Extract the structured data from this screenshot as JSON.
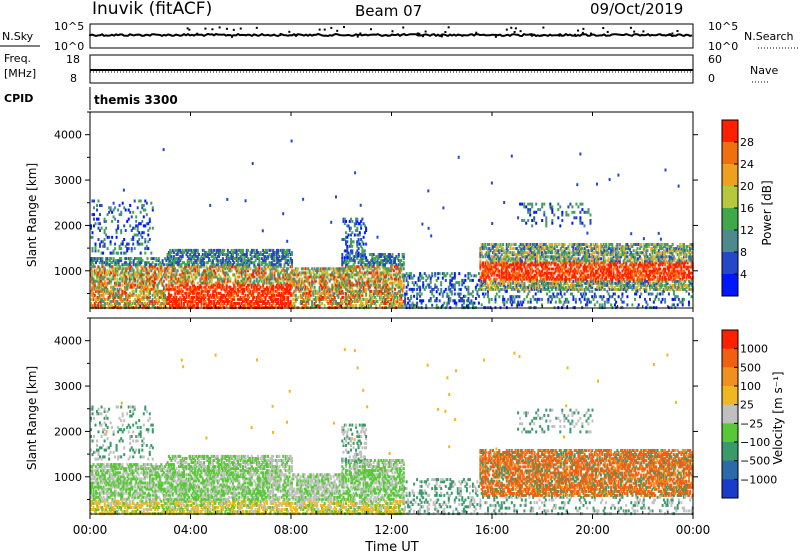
{
  "header": {
    "station": "Inuvik (fitACF)",
    "beam": "Beam 07",
    "date": "09/Oct/2019"
  },
  "aux_panels": {
    "nsky_label": "N.Sky",
    "nsearch_label": "N.Search",
    "nsky_ticks": [
      "10^5",
      "10^0"
    ],
    "nsearch_ticks": [
      "10^5",
      "10^0"
    ],
    "freq_label_line1": "Freq.",
    "freq_label_line2": "[MHz]",
    "freq_ticks": [
      "18",
      "8"
    ],
    "nave_label": "Nave",
    "nave_ticks": [
      "60",
      "0"
    ],
    "cpid_label": "CPID",
    "cpid_value": "themis 3300"
  },
  "chart_data": [
    {
      "type": "heatmap",
      "name": "power",
      "ylabel": "Slant Range [km]",
      "colorbar_label": "Power [dB]",
      "ylim": [
        180,
        4500
      ],
      "y_ticks": [
        "4000",
        "3000",
        "2000",
        "1000"
      ],
      "colorbar_ticks": [
        "28",
        "24",
        "20",
        "16",
        "12",
        "8",
        "4"
      ],
      "colorbar_colors": [
        "#0018ff",
        "#2648c8",
        "#4e8a8c",
        "#3ea84a",
        "#b8c83c",
        "#f0a020",
        "#f07010",
        "#ff2000"
      ]
    },
    {
      "type": "heatmap",
      "name": "velocity",
      "ylabel": "Slant Range [km]",
      "colorbar_label": "Velocity [m s⁻¹]",
      "ylim": [
        180,
        4500
      ],
      "y_ticks": [
        "4000",
        "3000",
        "2000",
        "1000"
      ],
      "colorbar_ticks": [
        "1000",
        "500",
        "100",
        "25",
        "−25",
        "−100",
        "−500",
        "−1000"
      ],
      "colorbar_colors": [
        "#1a3cc8",
        "#2a6aa8",
        "#3a9a6a",
        "#58c838",
        "#c0c0c0",
        "#f0b820",
        "#f09020",
        "#f06010",
        "#ff2000"
      ]
    }
  ],
  "x_axis": {
    "ticks": [
      "00:00",
      "04:00",
      "08:00",
      "12:00",
      "16:00",
      "20:00",
      "00:00"
    ],
    "label": "Time UT"
  }
}
